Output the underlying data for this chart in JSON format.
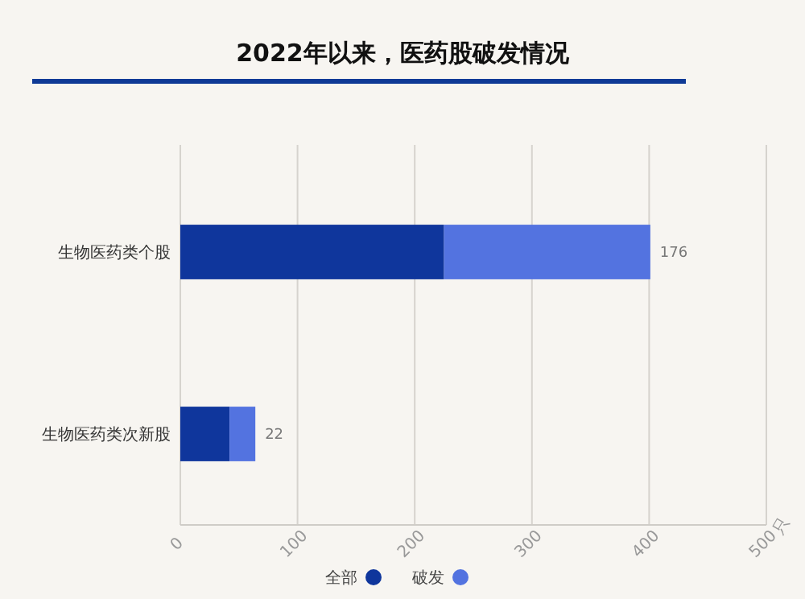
{
  "chart_data": {
    "type": "bar",
    "orientation": "horizontal",
    "stacked": true,
    "title": "2022年以来，医药股破发情况",
    "xlabel": "只",
    "categories": [
      "生物医药类个股",
      "生物医药类次新股"
    ],
    "series": [
      {
        "name": "全部",
        "color": "#0f369c",
        "values": [
          225,
          42
        ]
      },
      {
        "name": "破发",
        "color": "#5373e0",
        "values": [
          176,
          22
        ],
        "value_labels": [
          "176",
          "22"
        ]
      }
    ],
    "xlim": [
      0,
      500
    ],
    "xticks": [
      0,
      100,
      200,
      300,
      400,
      500
    ],
    "grid": "x",
    "legend": "bottom"
  }
}
